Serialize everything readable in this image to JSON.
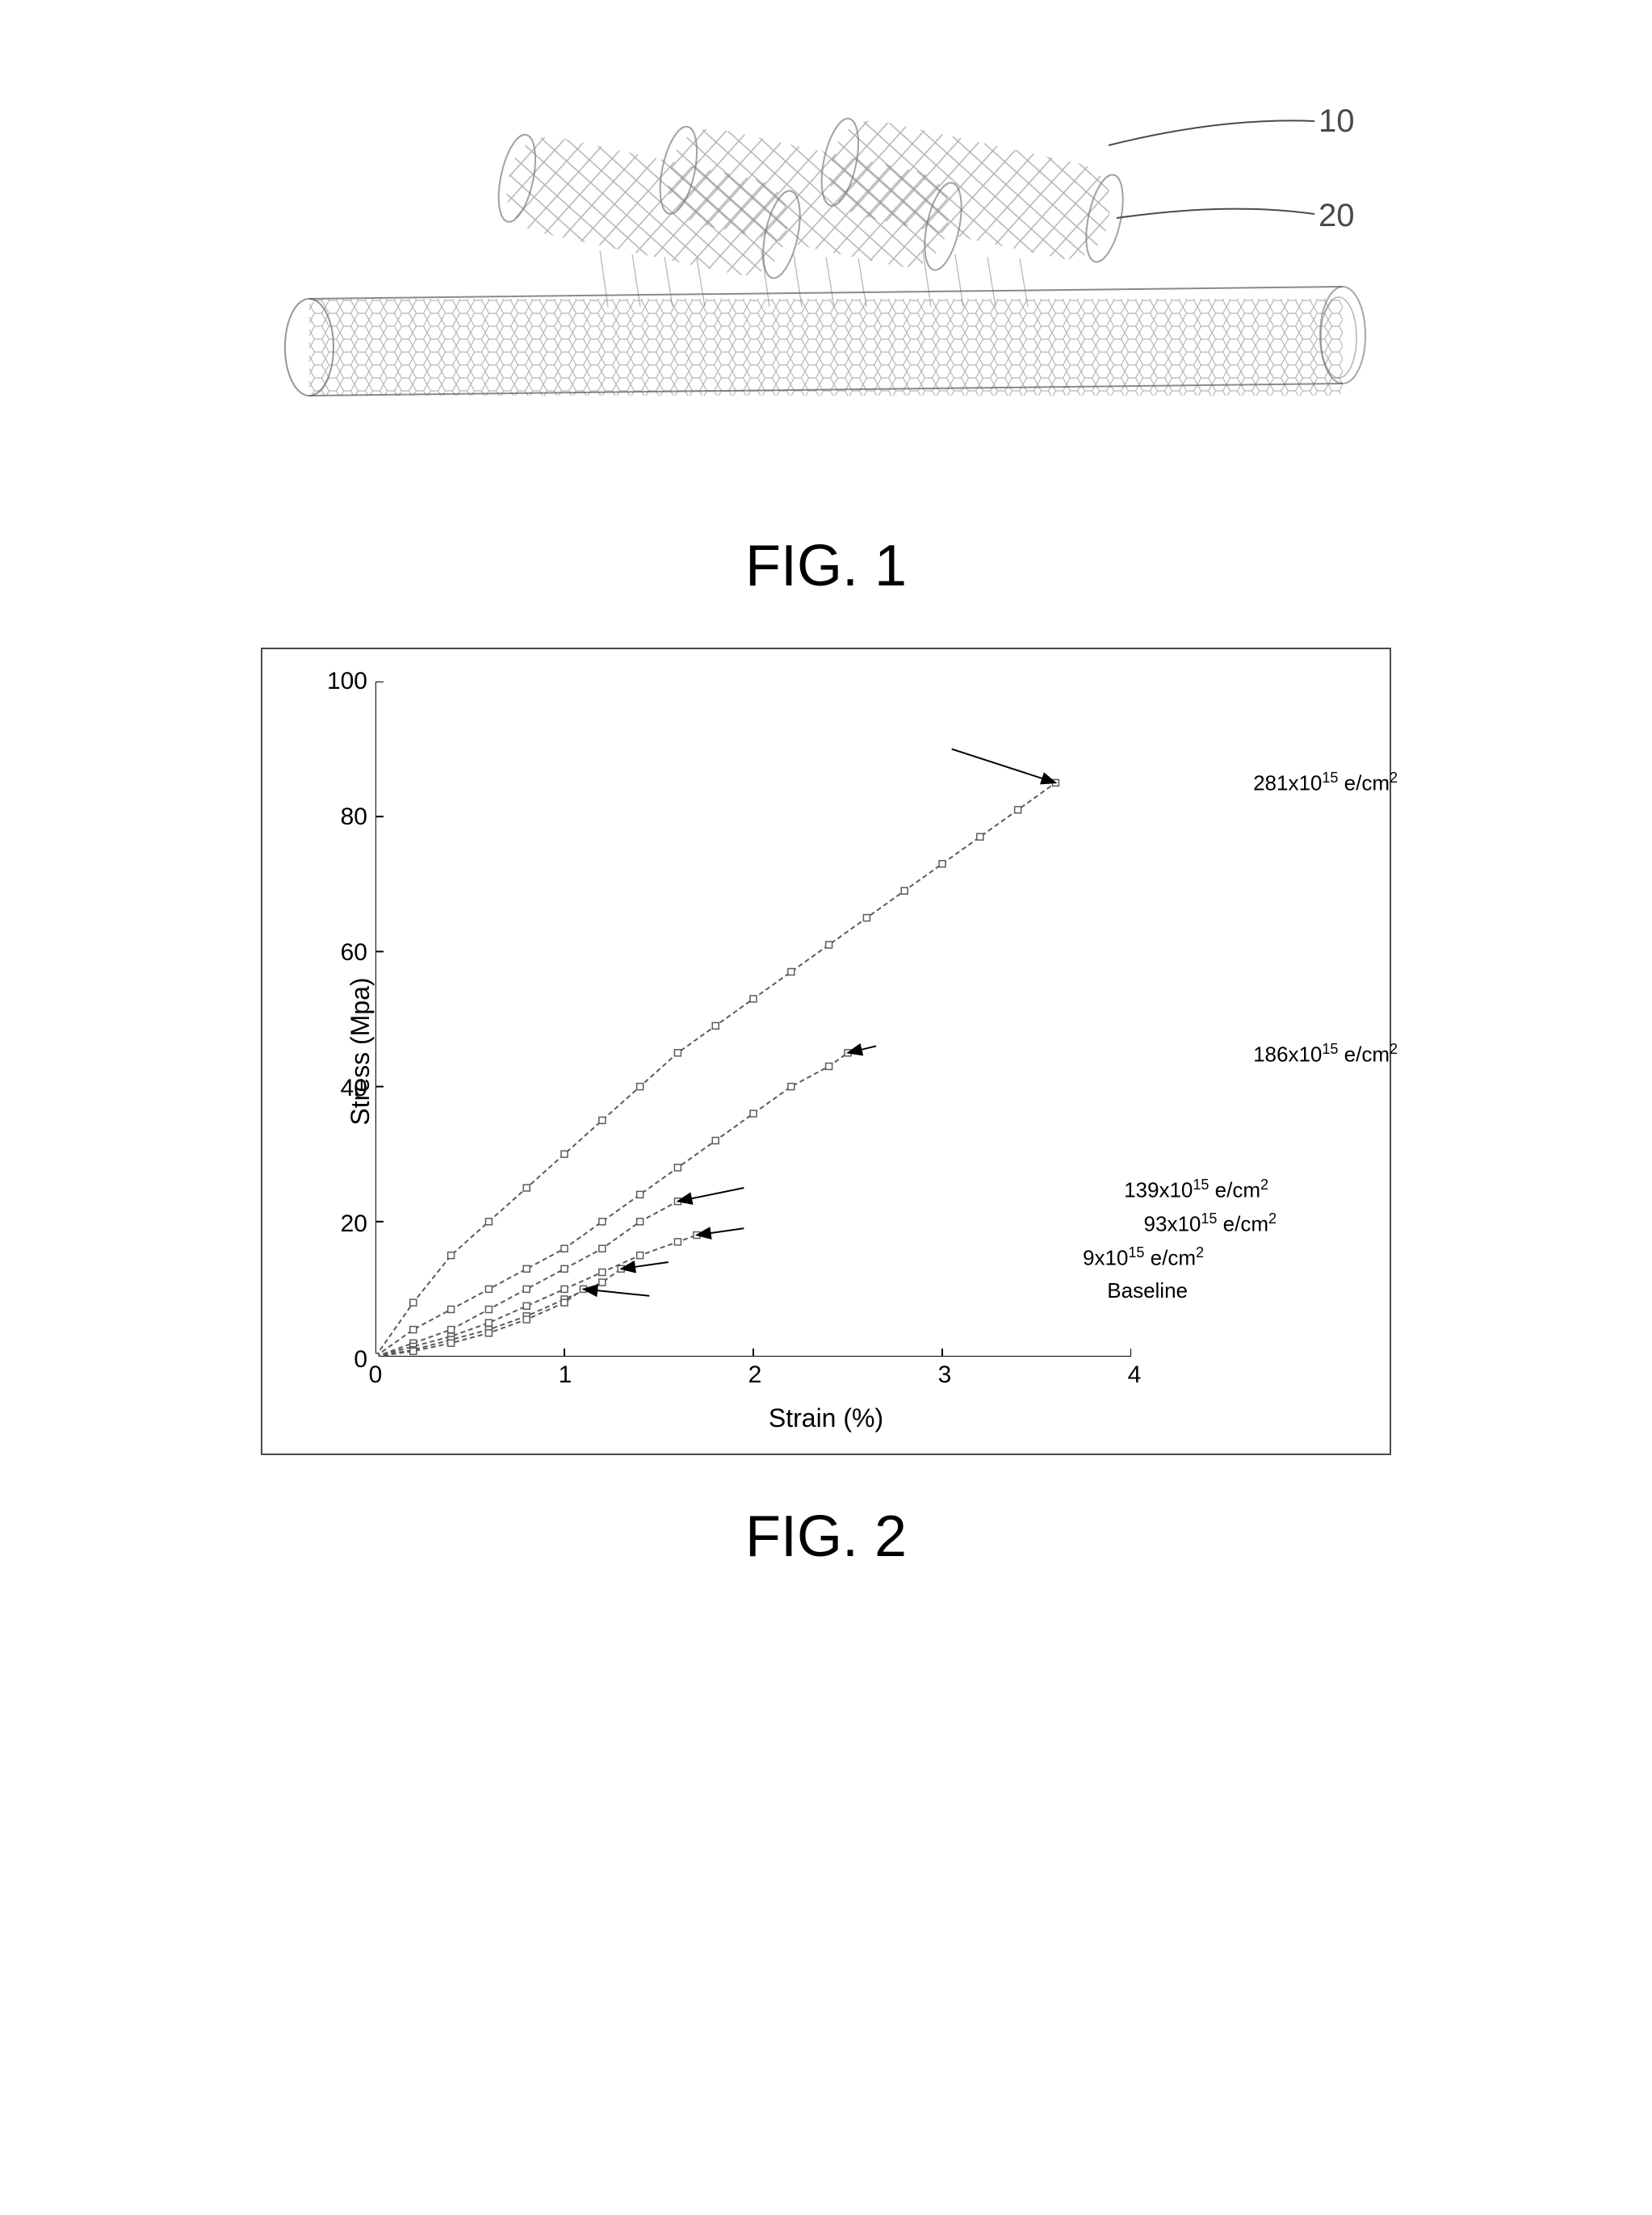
{
  "figure1": {
    "caption": "FIG. 1",
    "callouts": {
      "label10": "10",
      "label20": "20"
    },
    "nanotubes": {
      "main_tube_color": "#6a6a6a",
      "upper_tubes_color": "#7a7a7a",
      "line_color": "#5a5a5a",
      "lattice_opacity": 0.6
    }
  },
  "figure2": {
    "caption": "FIG. 2",
    "chart": {
      "type": "line",
      "xlabel": "Strain (%)",
      "ylabel": "Stress (Mpa)",
      "xlim": [
        0,
        4
      ],
      "ylim": [
        0,
        100
      ],
      "xtick_step": 1,
      "xticks": [
        0,
        1,
        2,
        3,
        4
      ],
      "ytick_step": 20,
      "yticks": [
        0,
        20,
        40,
        60,
        80,
        100
      ],
      "label_fontsize": 32,
      "tick_fontsize": 30,
      "border_color": "#4a4a4a",
      "background_color": "#ffffff",
      "grid": false,
      "marker": "square",
      "marker_size": 8,
      "marker_stroke": "#5a5a5a",
      "marker_fill": "none",
      "line_width": 2,
      "line_color": "#5a5a5a",
      "dash_pattern": "6,4",
      "series": [
        {
          "name": "281x10^15 e/cm^2",
          "label_html": "281x10<sup>15</sup> e/cm<sup>2</sup>",
          "x": [
            0,
            0.2,
            0.4,
            0.6,
            0.8,
            1.0,
            1.2,
            1.4,
            1.6,
            1.8,
            2.0,
            2.2,
            2.4,
            2.6,
            2.8,
            3.0,
            3.2,
            3.4,
            3.6
          ],
          "y": [
            0,
            8,
            15,
            20,
            25,
            30,
            35,
            40,
            45,
            49,
            53,
            57,
            61,
            65,
            69,
            73,
            77,
            81,
            85
          ],
          "arrow_end": [
            3.6,
            85
          ]
        },
        {
          "name": "186x10^15 e/cm^2",
          "label_html": "186x10<sup>15</sup> e/cm<sup>2</sup>",
          "x": [
            0,
            0.2,
            0.4,
            0.6,
            0.8,
            1.0,
            1.2,
            1.4,
            1.6,
            1.8,
            2.0,
            2.2,
            2.4,
            2.5
          ],
          "y": [
            0,
            4,
            7,
            10,
            13,
            16,
            20,
            24,
            28,
            32,
            36,
            40,
            43,
            45
          ],
          "arrow_end": [
            2.5,
            45
          ]
        },
        {
          "name": "139x10^15 e/cm^2",
          "label_html": "139x10<sup>15</sup> e/cm<sup>2</sup>",
          "x": [
            0,
            0.2,
            0.4,
            0.6,
            0.8,
            1.0,
            1.2,
            1.4,
            1.6
          ],
          "y": [
            0,
            2,
            4,
            7,
            10,
            13,
            16,
            20,
            23
          ],
          "arrow_end": [
            1.6,
            23
          ]
        },
        {
          "name": "93x10^15 e/cm^2",
          "label_html": "93x10<sup>15</sup> e/cm<sup>2</sup>",
          "x": [
            0,
            0.2,
            0.4,
            0.6,
            0.8,
            1.0,
            1.2,
            1.4,
            1.6,
            1.7
          ],
          "y": [
            0,
            1.5,
            3,
            5,
            7.5,
            10,
            12.5,
            15,
            17,
            18
          ],
          "arrow_end": [
            1.7,
            18
          ]
        },
        {
          "name": "9x10^15 e/cm^2",
          "label_html": "9x10<sup>15</sup> e/cm<sup>2</sup>",
          "x": [
            0,
            0.2,
            0.4,
            0.6,
            0.8,
            1.0,
            1.2,
            1.3
          ],
          "y": [
            0,
            1,
            2.5,
            4,
            6,
            8.5,
            11,
            13
          ],
          "arrow_end": [
            1.3,
            13
          ]
        },
        {
          "name": "Baseline",
          "label_html": "Baseline",
          "x": [
            0,
            0.2,
            0.4,
            0.6,
            0.8,
            1.0,
            1.1
          ],
          "y": [
            0,
            0.8,
            2,
            3.5,
            5.5,
            8,
            10
          ],
          "arrow_end": [
            1.1,
            10
          ]
        }
      ],
      "series_label_positions": [
        {
          "right": -10,
          "top_pct": 13
        },
        {
          "right": -10,
          "top_pct": 53
        },
        {
          "right": 150,
          "top_pct": 73
        },
        {
          "right": 140,
          "top_pct": 78
        },
        {
          "right": 230,
          "top_pct": 83
        },
        {
          "right": 250,
          "top_pct": 88
        }
      ]
    }
  }
}
